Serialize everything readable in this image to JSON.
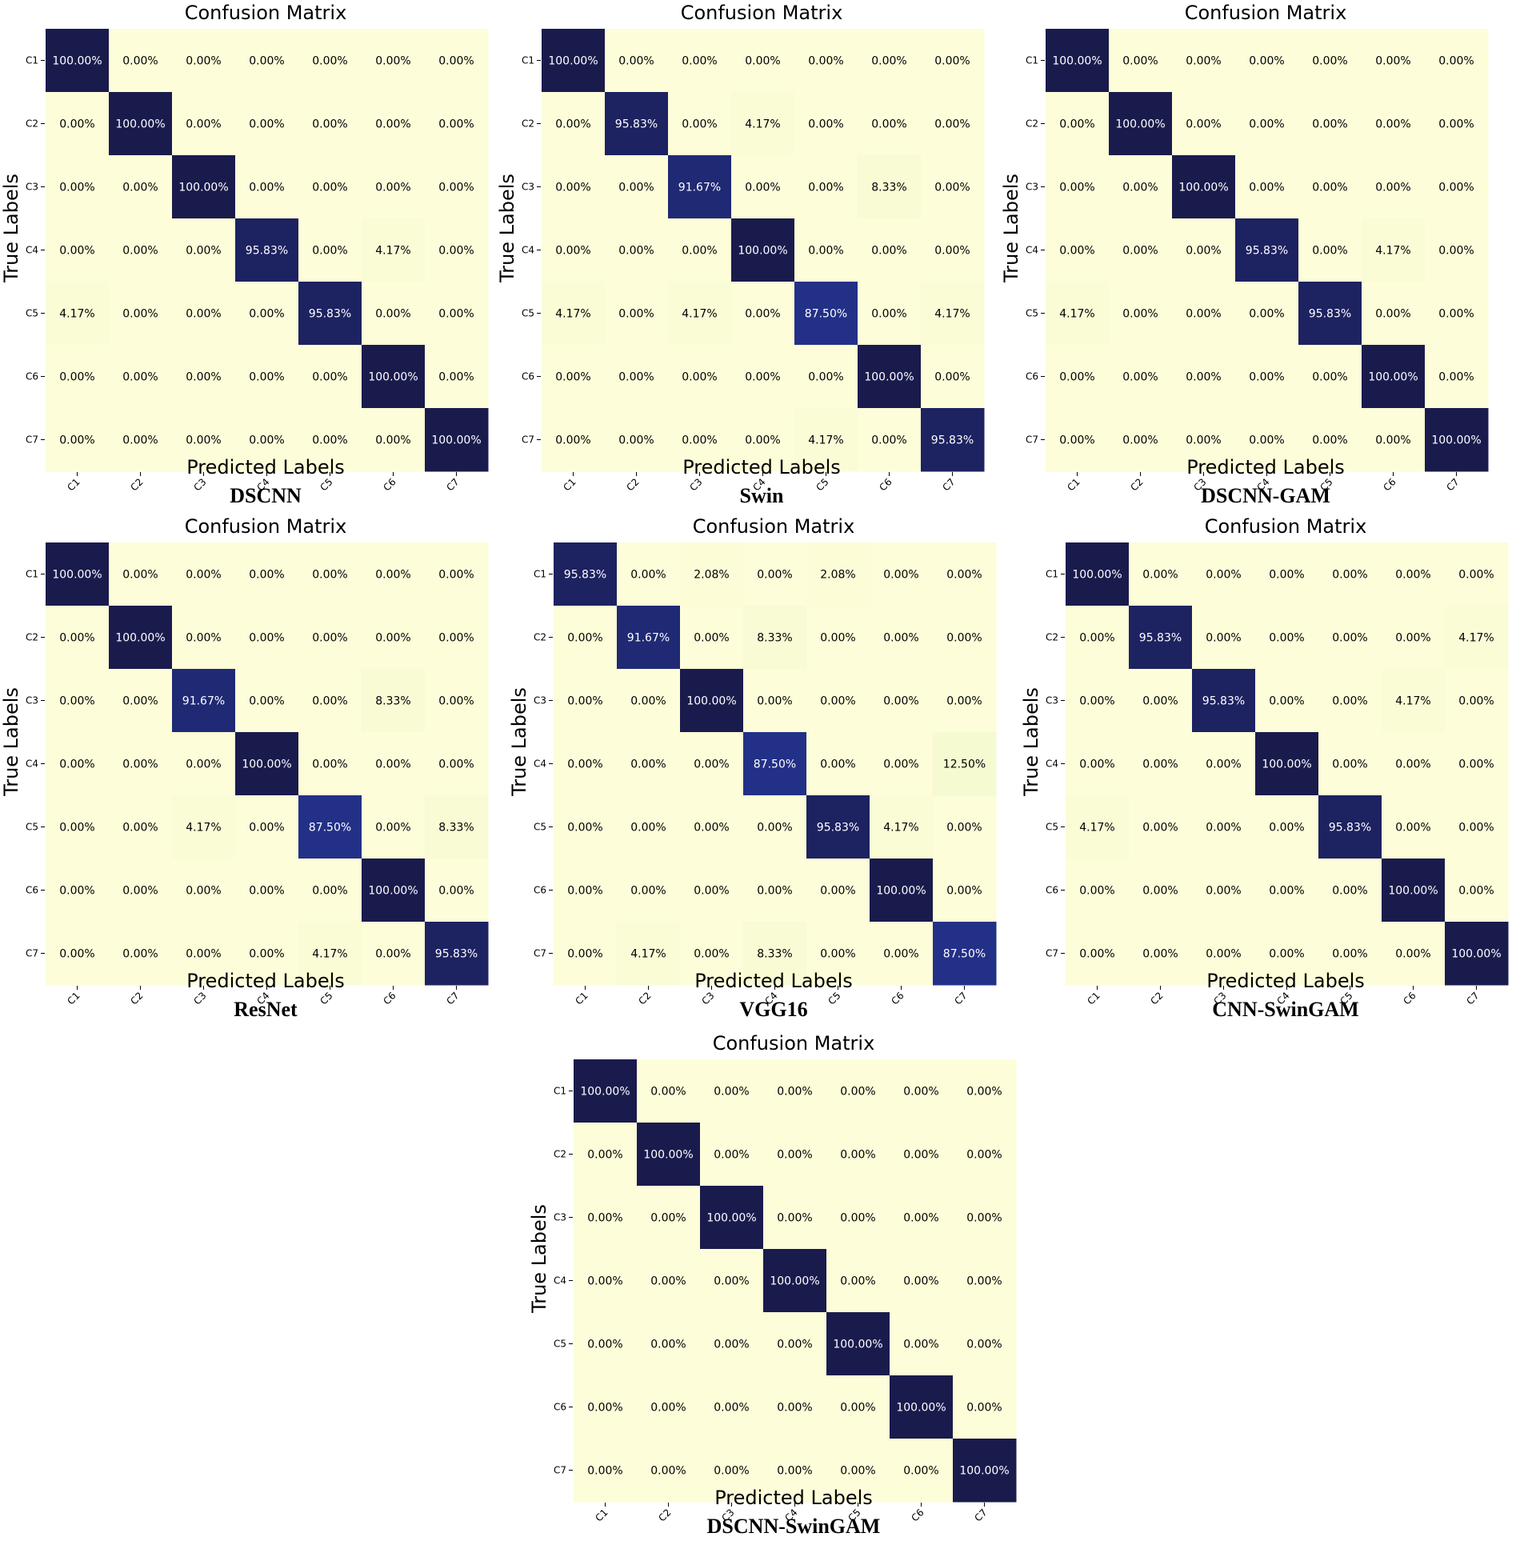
{
  "colors": {
    "low": "#fdfdd9",
    "high": "#1a1b4d"
  },
  "chart_data": [
    {
      "type": "heatmap",
      "model": "DSCNN",
      "title": "Confusion Matrix",
      "xlabel": "Predicted Labels",
      "ylabel": "True Labels",
      "x_categories": [
        "C1",
        "C2",
        "C3",
        "C4",
        "C5",
        "C6",
        "C7"
      ],
      "y_categories": [
        "C1",
        "C2",
        "C3",
        "C4",
        "C5",
        "C6",
        "C7"
      ],
      "values": [
        [
          "100.00%",
          "0.00%",
          "0.00%",
          "0.00%",
          "0.00%",
          "0.00%",
          "0.00%"
        ],
        [
          "0.00%",
          "100.00%",
          "0.00%",
          "0.00%",
          "0.00%",
          "0.00%",
          "0.00%"
        ],
        [
          "0.00%",
          "0.00%",
          "100.00%",
          "0.00%",
          "0.00%",
          "0.00%",
          "0.00%"
        ],
        [
          "0.00%",
          "0.00%",
          "0.00%",
          "95.83%",
          "0.00%",
          "4.17%",
          "0.00%"
        ],
        [
          "4.17%",
          "0.00%",
          "0.00%",
          "0.00%",
          "95.83%",
          "0.00%",
          "0.00%"
        ],
        [
          "0.00%",
          "0.00%",
          "0.00%",
          "0.00%",
          "0.00%",
          "100.00%",
          "0.00%"
        ],
        [
          "0.00%",
          "0.00%",
          "0.00%",
          "0.00%",
          "0.00%",
          "0.00%",
          "100.00%"
        ]
      ]
    },
    {
      "type": "heatmap",
      "model": "Swin",
      "title": "Confusion Matrix",
      "xlabel": "Predicted Labels",
      "ylabel": "True Labels",
      "x_categories": [
        "C1",
        "C2",
        "C3",
        "C4",
        "C5",
        "C6",
        "C7"
      ],
      "y_categories": [
        "C1",
        "C2",
        "C3",
        "C4",
        "C5",
        "C6",
        "C7"
      ],
      "values": [
        [
          "100.00%",
          "0.00%",
          "0.00%",
          "0.00%",
          "0.00%",
          "0.00%",
          "0.00%"
        ],
        [
          "0.00%",
          "95.83%",
          "0.00%",
          "4.17%",
          "0.00%",
          "0.00%",
          "0.00%"
        ],
        [
          "0.00%",
          "0.00%",
          "91.67%",
          "0.00%",
          "0.00%",
          "8.33%",
          "0.00%"
        ],
        [
          "0.00%",
          "0.00%",
          "0.00%",
          "100.00%",
          "0.00%",
          "0.00%",
          "0.00%"
        ],
        [
          "4.17%",
          "0.00%",
          "4.17%",
          "0.00%",
          "87.50%",
          "0.00%",
          "4.17%"
        ],
        [
          "0.00%",
          "0.00%",
          "0.00%",
          "0.00%",
          "0.00%",
          "100.00%",
          "0.00%"
        ],
        [
          "0.00%",
          "0.00%",
          "0.00%",
          "0.00%",
          "4.17%",
          "0.00%",
          "95.83%"
        ]
      ]
    },
    {
      "type": "heatmap",
      "model": "DSCNN-GAM",
      "title": "Confusion Matrix",
      "xlabel": "Predicted Labels",
      "ylabel": "True Labels",
      "x_categories": [
        "C1",
        "C2",
        "C3",
        "C4",
        "C5",
        "C6",
        "C7"
      ],
      "y_categories": [
        "C1",
        "C2",
        "C3",
        "C4",
        "C5",
        "C6",
        "C7"
      ],
      "values": [
        [
          "100.00%",
          "0.00%",
          "0.00%",
          "0.00%",
          "0.00%",
          "0.00%",
          "0.00%"
        ],
        [
          "0.00%",
          "100.00%",
          "0.00%",
          "0.00%",
          "0.00%",
          "0.00%",
          "0.00%"
        ],
        [
          "0.00%",
          "0.00%",
          "100.00%",
          "0.00%",
          "0.00%",
          "0.00%",
          "0.00%"
        ],
        [
          "0.00%",
          "0.00%",
          "0.00%",
          "95.83%",
          "0.00%",
          "4.17%",
          "0.00%"
        ],
        [
          "4.17%",
          "0.00%",
          "0.00%",
          "0.00%",
          "95.83%",
          "0.00%",
          "0.00%"
        ],
        [
          "0.00%",
          "0.00%",
          "0.00%",
          "0.00%",
          "0.00%",
          "100.00%",
          "0.00%"
        ],
        [
          "0.00%",
          "0.00%",
          "0.00%",
          "0.00%",
          "0.00%",
          "0.00%",
          "100.00%"
        ]
      ]
    },
    {
      "type": "heatmap",
      "model": "ResNet",
      "title": "Confusion Matrix",
      "xlabel": "Predicted Labels",
      "ylabel": "True Labels",
      "x_categories": [
        "C1",
        "C2",
        "C3",
        "C4",
        "C5",
        "C6",
        "C7"
      ],
      "y_categories": [
        "C1",
        "C2",
        "C3",
        "C4",
        "C5",
        "C6",
        "C7"
      ],
      "values": [
        [
          "100.00%",
          "0.00%",
          "0.00%",
          "0.00%",
          "0.00%",
          "0.00%",
          "0.00%"
        ],
        [
          "0.00%",
          "100.00%",
          "0.00%",
          "0.00%",
          "0.00%",
          "0.00%",
          "0.00%"
        ],
        [
          "0.00%",
          "0.00%",
          "91.67%",
          "0.00%",
          "0.00%",
          "8.33%",
          "0.00%"
        ],
        [
          "0.00%",
          "0.00%",
          "0.00%",
          "100.00%",
          "0.00%",
          "0.00%",
          "0.00%"
        ],
        [
          "0.00%",
          "0.00%",
          "4.17%",
          "0.00%",
          "87.50%",
          "0.00%",
          "8.33%"
        ],
        [
          "0.00%",
          "0.00%",
          "0.00%",
          "0.00%",
          "0.00%",
          "100.00%",
          "0.00%"
        ],
        [
          "0.00%",
          "0.00%",
          "0.00%",
          "0.00%",
          "4.17%",
          "0.00%",
          "95.83%"
        ]
      ]
    },
    {
      "type": "heatmap",
      "model": "VGG16",
      "title": "Confusion Matrix",
      "xlabel": "Predicted Labels",
      "ylabel": "True Labels",
      "x_categories": [
        "C1",
        "C2",
        "C3",
        "C4",
        "C5",
        "C6",
        "C7"
      ],
      "y_categories": [
        "C1",
        "C2",
        "C3",
        "C4",
        "C5",
        "C6",
        "C7"
      ],
      "values": [
        [
          "95.83%",
          "0.00%",
          "2.08%",
          "0.00%",
          "2.08%",
          "0.00%",
          "0.00%"
        ],
        [
          "0.00%",
          "91.67%",
          "0.00%",
          "8.33%",
          "0.00%",
          "0.00%",
          "0.00%"
        ],
        [
          "0.00%",
          "0.00%",
          "100.00%",
          "0.00%",
          "0.00%",
          "0.00%",
          "0.00%"
        ],
        [
          "0.00%",
          "0.00%",
          "0.00%",
          "87.50%",
          "0.00%",
          "0.00%",
          "12.50%"
        ],
        [
          "0.00%",
          "0.00%",
          "0.00%",
          "0.00%",
          "95.83%",
          "4.17%",
          "0.00%"
        ],
        [
          "0.00%",
          "0.00%",
          "0.00%",
          "0.00%",
          "0.00%",
          "100.00%",
          "0.00%"
        ],
        [
          "0.00%",
          "4.17%",
          "0.00%",
          "8.33%",
          "0.00%",
          "0.00%",
          "87.50%"
        ]
      ]
    },
    {
      "type": "heatmap",
      "model": "CNN-SwinGAM",
      "title": "Confusion Matrix",
      "xlabel": "Predicted Labels",
      "ylabel": "True Labels",
      "x_categories": [
        "C1",
        "C2",
        "C3",
        "C4",
        "C5",
        "C6",
        "C7"
      ],
      "y_categories": [
        "C1",
        "C2",
        "C3",
        "C4",
        "C5",
        "C6",
        "C7"
      ],
      "values": [
        [
          "100.00%",
          "0.00%",
          "0.00%",
          "0.00%",
          "0.00%",
          "0.00%",
          "0.00%"
        ],
        [
          "0.00%",
          "95.83%",
          "0.00%",
          "0.00%",
          "0.00%",
          "0.00%",
          "4.17%"
        ],
        [
          "0.00%",
          "0.00%",
          "95.83%",
          "0.00%",
          "0.00%",
          "4.17%",
          "0.00%"
        ],
        [
          "0.00%",
          "0.00%",
          "0.00%",
          "100.00%",
          "0.00%",
          "0.00%",
          "0.00%"
        ],
        [
          "4.17%",
          "0.00%",
          "0.00%",
          "0.00%",
          "95.83%",
          "0.00%",
          "0.00%"
        ],
        [
          "0.00%",
          "0.00%",
          "0.00%",
          "0.00%",
          "0.00%",
          "100.00%",
          "0.00%"
        ],
        [
          "0.00%",
          "0.00%",
          "0.00%",
          "0.00%",
          "0.00%",
          "0.00%",
          "100.00%"
        ]
      ]
    },
    {
      "type": "heatmap",
      "model": "DSCNN-SwinGAM",
      "title": "Confusion Matrix",
      "xlabel": "Predicted Labels",
      "ylabel": "True Labels",
      "x_categories": [
        "C1",
        "C2",
        "C3",
        "C4",
        "C5",
        "C6",
        "C7"
      ],
      "y_categories": [
        "C1",
        "C2",
        "C3",
        "C4",
        "C5",
        "C6",
        "C7"
      ],
      "values": [
        [
          "100.00%",
          "0.00%",
          "0.00%",
          "0.00%",
          "0.00%",
          "0.00%",
          "0.00%"
        ],
        [
          "0.00%",
          "100.00%",
          "0.00%",
          "0.00%",
          "0.00%",
          "0.00%",
          "0.00%"
        ],
        [
          "0.00%",
          "0.00%",
          "100.00%",
          "0.00%",
          "0.00%",
          "0.00%",
          "0.00%"
        ],
        [
          "0.00%",
          "0.00%",
          "0.00%",
          "100.00%",
          "0.00%",
          "0.00%",
          "0.00%"
        ],
        [
          "0.00%",
          "0.00%",
          "0.00%",
          "0.00%",
          "100.00%",
          "0.00%",
          "0.00%"
        ],
        [
          "0.00%",
          "0.00%",
          "0.00%",
          "0.00%",
          "0.00%",
          "100.00%",
          "0.00%"
        ],
        [
          "0.00%",
          "0.00%",
          "0.00%",
          "0.00%",
          "0.00%",
          "0.00%",
          "100.00%"
        ]
      ]
    }
  ]
}
